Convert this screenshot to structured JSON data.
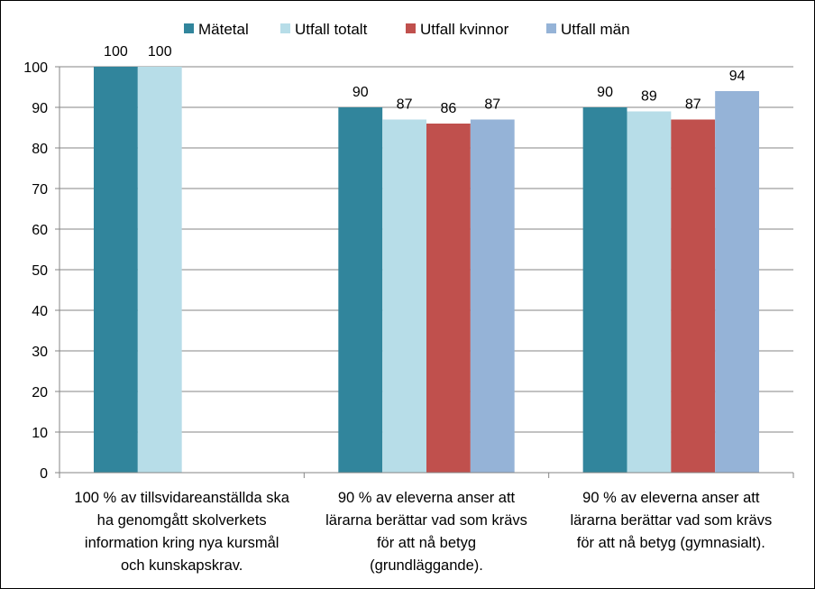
{
  "chart_data": {
    "type": "bar",
    "title": "",
    "xlabel": "",
    "ylabel": "",
    "ylim": [
      0,
      100
    ],
    "yticks": [
      0,
      10,
      20,
      30,
      40,
      50,
      60,
      70,
      80,
      90,
      100
    ],
    "grid": true,
    "legend_position": "top",
    "categories": [
      [
        "100 % av tillsvidareanställda ska",
        "ha genomgått skolverkets",
        "information kring nya kursmål",
        "och kunskapskrav."
      ],
      [
        "90 % av eleverna anser att",
        "lärarna berättar vad som krävs",
        "för att nå betyg",
        "(grundläggande)."
      ],
      [
        "90 % av eleverna anser att",
        "lärarna berättar vad som krävs",
        "för att nå betyg (gymnasialt)."
      ]
    ],
    "series": [
      {
        "name": "Mätetal",
        "color": "#31859c",
        "values": [
          100,
          90,
          90
        ]
      },
      {
        "name": "Utfall totalt",
        "color": "#b7dde8",
        "values": [
          100,
          87,
          89
        ]
      },
      {
        "name": "Utfall kvinnor",
        "color": "#c0504d",
        "values": [
          null,
          86,
          87
        ]
      },
      {
        "name": "Utfall män",
        "color": "#95b3d7",
        "values": [
          null,
          87,
          94
        ]
      }
    ]
  }
}
